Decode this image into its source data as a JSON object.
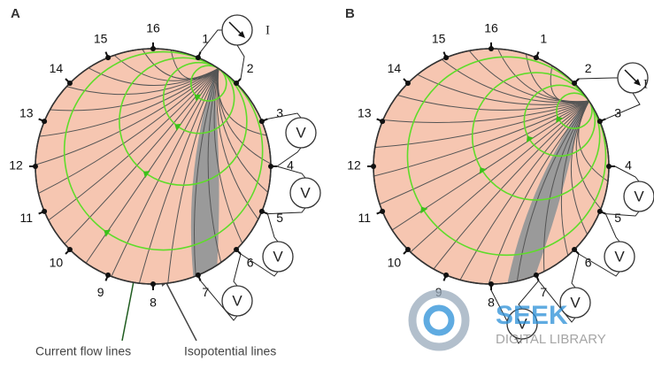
{
  "panels": [
    {
      "label": "A",
      "electrodes": [
        "1",
        "2",
        "3",
        "4",
        "5",
        "6",
        "7",
        "8",
        "9",
        "10",
        "11",
        "12",
        "13",
        "14",
        "15",
        "16"
      ],
      "current_label": "I",
      "voltmeters": [
        "V",
        "V",
        "V",
        "V"
      ]
    },
    {
      "label": "B",
      "electrodes": [
        "1",
        "2",
        "3",
        "4",
        "5",
        "6",
        "7",
        "8",
        "9",
        "10",
        "11",
        "12",
        "13",
        "14",
        "15",
        "16"
      ],
      "current_label": "I",
      "voltmeters": [
        "V",
        "V",
        "V",
        "V"
      ]
    }
  ],
  "captions": {
    "current": "Current flow lines",
    "isopotential": "Isopotential lines"
  },
  "watermark": {
    "brand": "SEEK",
    "sub": "DIGITAL LIBRARY"
  }
}
